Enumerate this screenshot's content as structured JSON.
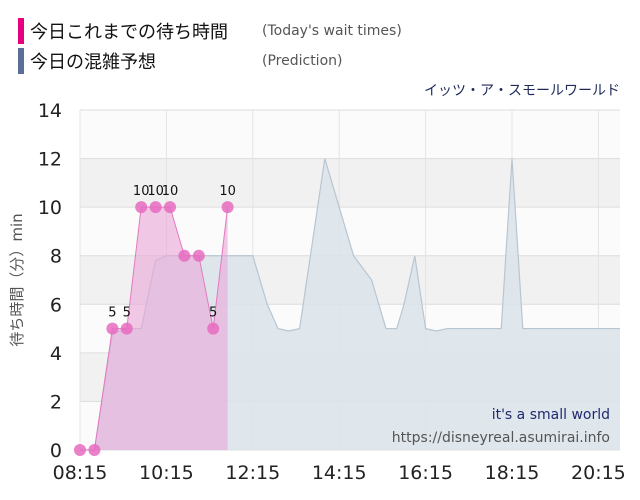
{
  "legend": [
    {
      "label": "今日これまでの待ち時間",
      "sub": "(Today's wait times)",
      "color": "#e6007e"
    },
    {
      "label": "今日の混雑予想",
      "sub": "(Prediction)",
      "color": "#5b6f96"
    }
  ],
  "attraction": "イッツ・ア・スモールワールド",
  "watermark": {
    "line1": "it's a small world",
    "line2": "https://disneyreal.asumirai.info"
  },
  "chart_data": {
    "type": "area",
    "ylabel": "待ち時間（分）min",
    "ylim": [
      0,
      14
    ],
    "y_ticks": [
      0,
      2,
      4,
      6,
      8,
      10,
      12,
      14
    ],
    "xlim": [
      "08:15",
      "20:45"
    ],
    "x_ticks": [
      "08:15",
      "10:15",
      "12:15",
      "14:15",
      "16:15",
      "18:15",
      "20:15"
    ],
    "grid": true,
    "colors": {
      "actual_line": "#e27ac0",
      "actual_fill": "#e9a6d8",
      "actual_point": "#e66bc0",
      "pred_fill": "#dbe3ea",
      "pred_line": "#b8c6d2"
    },
    "series": [
      {
        "kind": "prediction",
        "x": [
          "08:15",
          "08:35",
          "09:00",
          "09:20",
          "09:40",
          "10:00",
          "10:15",
          "10:35",
          "11:00",
          "11:20",
          "11:40",
          "12:00",
          "12:15",
          "12:35",
          "12:50",
          "13:05",
          "13:20",
          "13:40",
          "13:55",
          "14:15",
          "14:35",
          "15:00",
          "15:20",
          "15:35",
          "15:45",
          "16:00",
          "16:15",
          "16:30",
          "16:45",
          "17:00",
          "17:20",
          "17:45",
          "18:00",
          "18:15",
          "18:30",
          "18:45",
          "19:00",
          "19:30",
          "20:00",
          "20:45"
        ],
        "values": [
          0,
          0,
          4.8,
          5,
          5,
          7.8,
          8,
          8,
          8,
          8,
          8,
          8,
          8,
          6,
          5,
          4.9,
          5,
          9,
          12,
          10,
          8,
          7,
          5,
          5,
          6,
          8,
          5,
          4.9,
          5,
          5,
          5,
          5,
          5,
          12,
          5,
          5,
          5,
          5,
          5,
          5
        ]
      },
      {
        "kind": "actual",
        "x": [
          "08:15",
          "08:35",
          "09:00",
          "09:20",
          "09:40",
          "10:00",
          "10:20",
          "10:40",
          "11:00",
          "11:20",
          "11:40"
        ],
        "values": [
          0,
          0,
          5,
          5,
          10,
          10,
          10,
          8,
          8,
          5,
          10
        ],
        "labels": [
          "",
          "",
          "5",
          "5",
          "10",
          "10",
          "10",
          "",
          "",
          "5",
          "10"
        ]
      }
    ]
  }
}
